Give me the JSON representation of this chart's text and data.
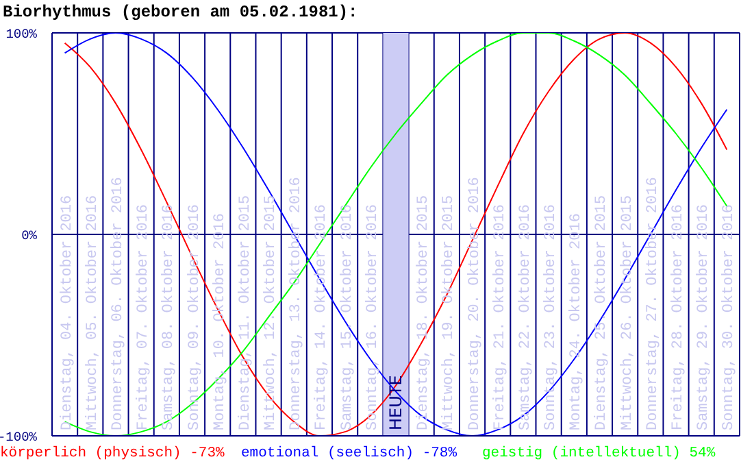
{
  "chart_data": {
    "type": "line",
    "title": "Biorhythmus (geboren am 05.02.1981):",
    "categories": [
      "Dienstag, 04. Oktober 2016",
      "Mittwoch, 05. Oktober 2016",
      "Donnerstag, 06. Oktober 2016",
      "Freitag, 07. Oktober 2016",
      "Samstag, 08. Oktober 2016",
      "Sonntag, 09. Oktober 2016",
      "Montag, 10. Oktober 2016",
      "Dienstag, 11. Oktober 2015",
      "Mittwoch, 12. Oktober 2015",
      "Donnerstag, 13. Oktober 2016",
      "Freitag, 14. Oktober 2016",
      "Samstag, 15. Oktober 2016",
      "Sonntag, 16. Oktober 2016",
      "HEUTE",
      "Dienstag, 18. Oktober 2015",
      "Mittwoch, 19. Oktober 2015",
      "Donnerstag, 20. Oktober 2016",
      "Freitag, 21. Oktober 2016",
      "Samstag, 22. Oktober 2016",
      "Sonntag, 23. Oktober 2016",
      "Montag, 24. Oktober 2016",
      "Dienstag, 25. Oktober 2015",
      "Mittwoch, 26. Oktober 2015",
      "Donnerstag, 27. Oktober 2016",
      "Freitag, 28. Oktober 2016",
      "Samstag, 29. Oktober 2016",
      "Sonntag, 30. Oktober 2016"
    ],
    "series": [
      {
        "name": "körperlich (physisch) -73%",
        "color": "#ff0000",
        "values": [
          95,
          83,
          65,
          42,
          16,
          -11,
          -37,
          -61,
          -80,
          -93,
          -100,
          -98,
          -90,
          -75,
          -54,
          -30,
          -3,
          24,
          50,
          71,
          87,
          97,
          100,
          95,
          83,
          65,
          42
        ]
      },
      {
        "name": "emotional (seelisch) -78%",
        "color": "#0000ff",
        "values": [
          90,
          97,
          100,
          97,
          90,
          78,
          62,
          43,
          22,
          0,
          -22,
          -43,
          -62,
          -78,
          -90,
          -97,
          -100,
          -97,
          -90,
          -78,
          -62,
          -43,
          -22,
          0,
          22,
          43,
          62
        ]
      },
      {
        "name": "geistig (intellektuell) 54%",
        "color": "#00ff00",
        "values": [
          -93,
          -98,
          -100,
          -98,
          -93,
          -84,
          -72,
          -58,
          -41,
          -24,
          -5,
          14,
          33,
          50,
          65,
          79,
          89,
          96,
          100,
          100,
          96,
          89,
          79,
          65,
          50,
          33,
          14
        ]
      }
    ],
    "ylim": [
      -100,
      100
    ],
    "yticks": [
      {
        "value": -100,
        "label": "-100%"
      },
      {
        "value": 0,
        "label": "0%"
      },
      {
        "value": 100,
        "label": "100%"
      }
    ],
    "bands": [
      {
        "axis": "x",
        "from": "HEUTE",
        "to": "HEUTE",
        "color": "#ccccf5"
      }
    ],
    "grid": true,
    "legend": "bottom",
    "marker": "none",
    "line_style": "solid"
  }
}
